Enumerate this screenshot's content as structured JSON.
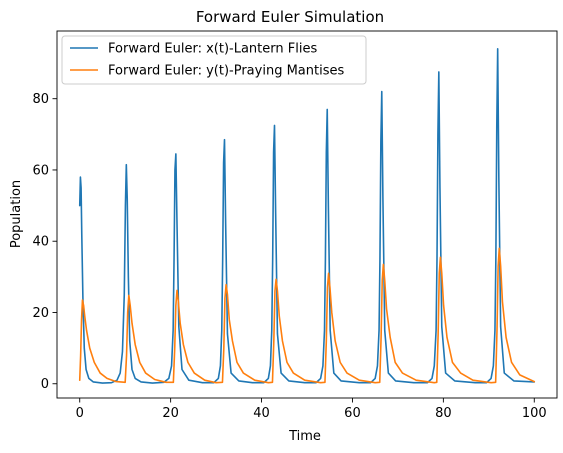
{
  "chart_data": {
    "type": "line",
    "title": "Forward Euler Simulation",
    "xlabel": "Time",
    "ylabel": "Population",
    "xlim": [
      -5,
      105
    ],
    "ylim": [
      -4,
      99
    ],
    "xticks": [
      0,
      20,
      40,
      60,
      80,
      100
    ],
    "yticks": [
      0,
      20,
      40,
      60,
      80
    ],
    "grid": false,
    "legend_position": "top-left",
    "series": [
      {
        "name": "Forward Euler: x(t)-Lantern Flies",
        "color": "#1f77b4",
        "x": [
          0,
          0.15,
          0.3,
          0.45,
          0.7,
          1.0,
          1.4,
          2.0,
          3.0,
          5.0,
          7.0,
          8.2,
          8.9,
          9.4,
          9.8,
          10.05,
          10.25,
          10.45,
          10.7,
          11.0,
          11.5,
          12.2,
          13.5,
          16.0,
          18.5,
          19.6,
          20.2,
          20.55,
          20.75,
          20.95,
          21.15,
          21.4,
          21.8,
          22.5,
          24.0,
          27.0,
          29.5,
          30.5,
          30.95,
          31.25,
          31.45,
          31.65,
          31.85,
          32.1,
          32.5,
          33.3,
          35.0,
          38.0,
          40.5,
          41.5,
          41.95,
          42.25,
          42.45,
          42.65,
          42.85,
          43.1,
          43.5,
          44.3,
          46.0,
          49.5,
          52.0,
          53.0,
          53.5,
          53.85,
          54.05,
          54.25,
          54.45,
          54.7,
          55.1,
          55.9,
          57.5,
          61.5,
          64.0,
          65.0,
          65.5,
          65.85,
          66.05,
          66.25,
          66.45,
          66.7,
          67.1,
          67.9,
          69.5,
          73.5,
          76.5,
          77.5,
          78.0,
          78.4,
          78.6,
          78.8,
          79.0,
          79.25,
          79.65,
          80.5,
          82.5,
          87.0,
          89.5,
          90.5,
          91.0,
          91.35,
          91.55,
          91.75,
          91.95,
          92.2,
          92.6,
          93.4,
          95.5,
          100
        ],
        "y": [
          50,
          58,
          55,
          42,
          24,
          10,
          4,
          1.5,
          0.5,
          0.2,
          0.3,
          1,
          3,
          9,
          25,
          50,
          61.5,
          52,
          30,
          12,
          4,
          1.5,
          0.5,
          0.2,
          0.4,
          1.5,
          5,
          15,
          35,
          60,
          64.5,
          45,
          16,
          4,
          1,
          0.3,
          0.3,
          1.5,
          5,
          15,
          35,
          62,
          68.5,
          45,
          14,
          3,
          0.8,
          0.3,
          0.3,
          1.5,
          5,
          15,
          35,
          65,
          72.5,
          48,
          14,
          3,
          0.8,
          0.3,
          0.3,
          1.5,
          5,
          15,
          35,
          65,
          77,
          50,
          15,
          3,
          0.8,
          0.3,
          0.3,
          1.5,
          5,
          15,
          35,
          68,
          82,
          52,
          15,
          3,
          0.8,
          0.3,
          0.3,
          1.5,
          5,
          15,
          35,
          70,
          87.5,
          55,
          16,
          3,
          0.8,
          0.3,
          0.3,
          1.5,
          5,
          15,
          35,
          72,
          94,
          58,
          16,
          3,
          0.8,
          0.5
        ]
      },
      {
        "name": "Forward Euler: y(t)-Praying Mantises",
        "color": "#ff7f0e",
        "x": [
          0,
          0.2,
          0.4,
          0.6,
          0.85,
          1.1,
          1.5,
          2.2,
          3.2,
          4.5,
          6.0,
          8.0,
          10.0,
          10.3,
          10.55,
          10.8,
          11.1,
          11.5,
          12.2,
          13.2,
          14.5,
          16.5,
          19.0,
          20.6,
          20.9,
          21.15,
          21.4,
          21.7,
          22.1,
          22.8,
          23.8,
          25.2,
          27.5,
          30.0,
          31.4,
          31.7,
          31.95,
          32.2,
          32.5,
          32.9,
          33.6,
          34.6,
          36.0,
          38.5,
          41.5,
          42.4,
          42.7,
          42.95,
          43.2,
          43.5,
          43.9,
          44.6,
          45.6,
          47.0,
          49.5,
          53.0,
          53.95,
          54.25,
          54.5,
          54.75,
          55.05,
          55.45,
          56.2,
          57.3,
          58.8,
          61.5,
          65.0,
          66.0,
          66.3,
          66.55,
          66.8,
          67.1,
          67.5,
          68.3,
          69.4,
          71.0,
          74.0,
          78.0,
          78.55,
          78.85,
          79.1,
          79.35,
          79.65,
          80.05,
          80.8,
          82.0,
          83.8,
          86.5,
          90.5,
          91.5,
          91.8,
          92.05,
          92.3,
          92.6,
          93.0,
          93.8,
          95.0,
          96.8,
          100
        ],
        "y": [
          1,
          8,
          18,
          23.5,
          22,
          19,
          15,
          10,
          6,
          3,
          1.5,
          0.6,
          0.4,
          8,
          20,
          24.8,
          22,
          17,
          11,
          6,
          3,
          1.2,
          0.4,
          0.4,
          10,
          22,
          26.2,
          23,
          17,
          11,
          6,
          3,
          1,
          0.3,
          0.4,
          10,
          24,
          27.8,
          25,
          18,
          12,
          6,
          3,
          1,
          0.3,
          0.4,
          12,
          26,
          29.3,
          26,
          19,
          12,
          6,
          3,
          1,
          0.3,
          0.4,
          12,
          27,
          31,
          27,
          20,
          12,
          6,
          3,
          1,
          0.3,
          0.4,
          13,
          29,
          33.5,
          29,
          21,
          13,
          6,
          3,
          1,
          0.3,
          0.4,
          14,
          31,
          35.5,
          31,
          22,
          13,
          6,
          3,
          1,
          0.3,
          0.4,
          15,
          33,
          38,
          33,
          23,
          13,
          6,
          2.5,
          0.6
        ]
      }
    ]
  }
}
